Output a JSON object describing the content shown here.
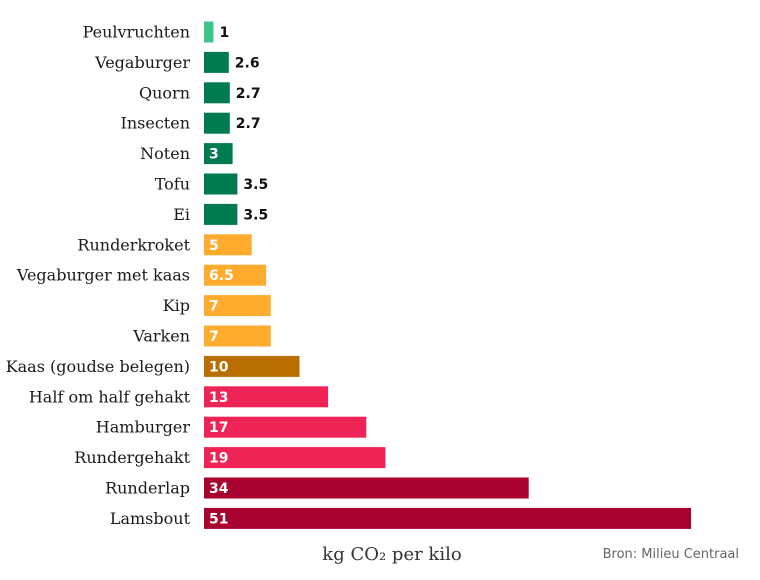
{
  "chart_data": {
    "type": "bar",
    "orientation": "horizontal",
    "categories": [
      "Peulvruchten",
      "Vegaburger",
      "Quorn",
      "Insecten",
      "Noten",
      "Tofu",
      "Ei",
      "Runderkroket",
      "Vegaburger met kaas",
      "Kip",
      "Varken",
      "Kaas (goudse belegen)",
      "Half om half gehakt",
      "Hamburger",
      "Rundergehakt",
      "Runderlap",
      "Lamsbout"
    ],
    "values": [
      1,
      2.6,
      2.7,
      2.7,
      3,
      3.5,
      3.5,
      5,
      6.5,
      7,
      7,
      10,
      13,
      17,
      19,
      34,
      51
    ],
    "value_labels": [
      "1",
      "2.6",
      "2.7",
      "2.7",
      "3",
      "3.5",
      "3.5",
      "5",
      "6.5",
      "7",
      "7",
      "10",
      "13",
      "17",
      "19",
      "34",
      "51"
    ],
    "bar_colors": [
      "#3ec48f",
      "#007a4f",
      "#007a4f",
      "#007a4f",
      "#007a4f",
      "#007a4f",
      "#007a4f",
      "#ffab2e",
      "#ffab2e",
      "#ffab2e",
      "#ffab2e",
      "#b86e00",
      "#ee2456",
      "#ee2456",
      "#ee2456",
      "#a8002f",
      "#a8002f"
    ],
    "xlabel": "kg CO₂ per kilo",
    "xlim": [
      0,
      51
    ],
    "grid": false,
    "legend": "none",
    "source": "Bron: Milieu Centraal"
  }
}
